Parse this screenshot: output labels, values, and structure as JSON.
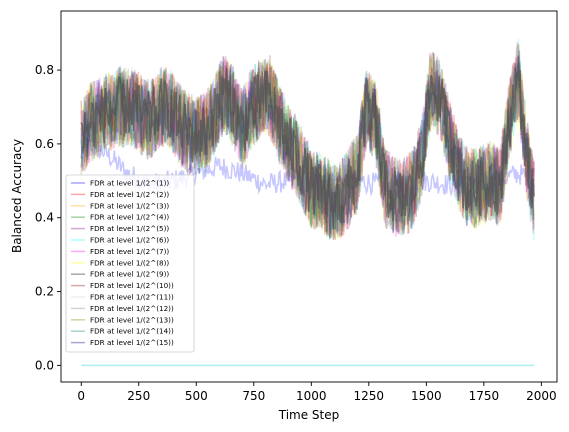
{
  "chart_data": {
    "type": "line",
    "title": "",
    "xlabel": "Time Step",
    "ylabel": "Balanced Accuracy",
    "xlim": [
      -88,
      2068
    ],
    "ylim": [
      -0.045,
      0.96
    ],
    "xticks": [
      0,
      250,
      500,
      750,
      1000,
      1250,
      1500,
      1750,
      2000
    ],
    "yticks": [
      0.0,
      0.2,
      0.4,
      0.6,
      0.8
    ],
    "ytick_labels": [
      "0.0",
      "0.2",
      "0.4",
      "0.6",
      "0.8"
    ],
    "grid": false,
    "legend_position": "lower-left",
    "x_range": [
      0,
      1970
    ],
    "series": [
      {
        "name": "FDR at level 1/(2^(1))",
        "color": "#0000ff",
        "alpha": 0.22,
        "width": 1.5
      },
      {
        "name": "FDR at level 1/(2^(2))",
        "color": "#ff0000",
        "alpha": 0.22,
        "width": 1.5
      },
      {
        "name": "FDR at level 1/(2^(3))",
        "color": "#ffa500",
        "alpha": 0.22,
        "width": 1.5
      },
      {
        "name": "FDR at level 1/(2^(4))",
        "color": "#008000",
        "alpha": 0.22,
        "width": 1.5
      },
      {
        "name": "FDR at level 1/(2^(5))",
        "color": "#800080",
        "alpha": 0.22,
        "width": 1.5
      },
      {
        "name": "FDR at level 1/(2^(6))",
        "color": "#00ffff",
        "alpha": 0.22,
        "width": 1.5
      },
      {
        "name": "FDR at level 1/(2^(7))",
        "color": "#ff00ff",
        "alpha": 0.22,
        "width": 1.5
      },
      {
        "name": "FDR at level 1/(2^(8))",
        "color": "#ffff00",
        "alpha": 0.22,
        "width": 1.5
      },
      {
        "name": "FDR at level 1/(2^(9))",
        "color": "#000000",
        "alpha": 0.22,
        "width": 1.5
      },
      {
        "name": "FDR at level 1/(2^(10))",
        "color": "#8b0000",
        "alpha": 0.22,
        "width": 1.5
      },
      {
        "name": "FDR at level 1/(2^(11))",
        "color": "#d3d3d3",
        "alpha": 0.22,
        "width": 1.5
      },
      {
        "name": "FDR at level 1/(2^(12))",
        "color": "#808080",
        "alpha": 0.22,
        "width": 1.5
      },
      {
        "name": "FDR at level 1/(2^(13))",
        "color": "#808000",
        "alpha": 0.22,
        "width": 1.5
      },
      {
        "name": "FDR at level 1/(2^(14))",
        "color": "#008080",
        "alpha": 0.22,
        "width": 1.5
      },
      {
        "name": "FDR at level 1/(2^(15))",
        "color": "#000080",
        "alpha": 0.22,
        "width": 1.5
      }
    ],
    "trend": [
      [
        0,
        0.62
      ],
      [
        40,
        0.66
      ],
      [
        100,
        0.68
      ],
      [
        160,
        0.7
      ],
      [
        220,
        0.7
      ],
      [
        260,
        0.68
      ],
      [
        300,
        0.66
      ],
      [
        340,
        0.7
      ],
      [
        380,
        0.7
      ],
      [
        420,
        0.66
      ],
      [
        460,
        0.63
      ],
      [
        500,
        0.62
      ],
      [
        540,
        0.63
      ],
      [
        580,
        0.68
      ],
      [
        620,
        0.74
      ],
      [
        660,
        0.7
      ],
      [
        700,
        0.64
      ],
      [
        740,
        0.7
      ],
      [
        780,
        0.72
      ],
      [
        820,
        0.73
      ],
      [
        860,
        0.66
      ],
      [
        900,
        0.6
      ],
      [
        940,
        0.56
      ],
      [
        970,
        0.52
      ],
      [
        1000,
        0.48
      ],
      [
        1040,
        0.47
      ],
      [
        1080,
        0.45
      ],
      [
        1120,
        0.44
      ],
      [
        1160,
        0.48
      ],
      [
        1200,
        0.52
      ],
      [
        1240,
        0.7
      ],
      [
        1280,
        0.66
      ],
      [
        1320,
        0.48
      ],
      [
        1360,
        0.46
      ],
      [
        1400,
        0.45
      ],
      [
        1440,
        0.48
      ],
      [
        1480,
        0.56
      ],
      [
        1520,
        0.76
      ],
      [
        1560,
        0.72
      ],
      [
        1600,
        0.62
      ],
      [
        1640,
        0.52
      ],
      [
        1680,
        0.48
      ],
      [
        1720,
        0.48
      ],
      [
        1780,
        0.5
      ],
      [
        1820,
        0.48
      ],
      [
        1860,
        0.66
      ],
      [
        1900,
        0.78
      ],
      [
        1940,
        0.55
      ],
      [
        1970,
        0.44
      ]
    ],
    "series1_trend": [
      [
        0,
        0.6
      ],
      [
        100,
        0.58
      ],
      [
        200,
        0.52
      ],
      [
        300,
        0.49
      ],
      [
        400,
        0.5
      ],
      [
        500,
        0.52
      ],
      [
        600,
        0.54
      ],
      [
        700,
        0.52
      ],
      [
        800,
        0.49
      ],
      [
        900,
        0.5
      ],
      [
        1000,
        0.5
      ],
      [
        1100,
        0.5
      ],
      [
        1200,
        0.5
      ],
      [
        1300,
        0.49
      ],
      [
        1400,
        0.49
      ],
      [
        1500,
        0.5
      ],
      [
        1600,
        0.49
      ],
      [
        1700,
        0.49
      ],
      [
        1800,
        0.5
      ],
      [
        1900,
        0.52
      ],
      [
        1970,
        0.5
      ]
    ],
    "zero_line": {
      "value": 0.0,
      "color": "#40e0d0"
    }
  }
}
